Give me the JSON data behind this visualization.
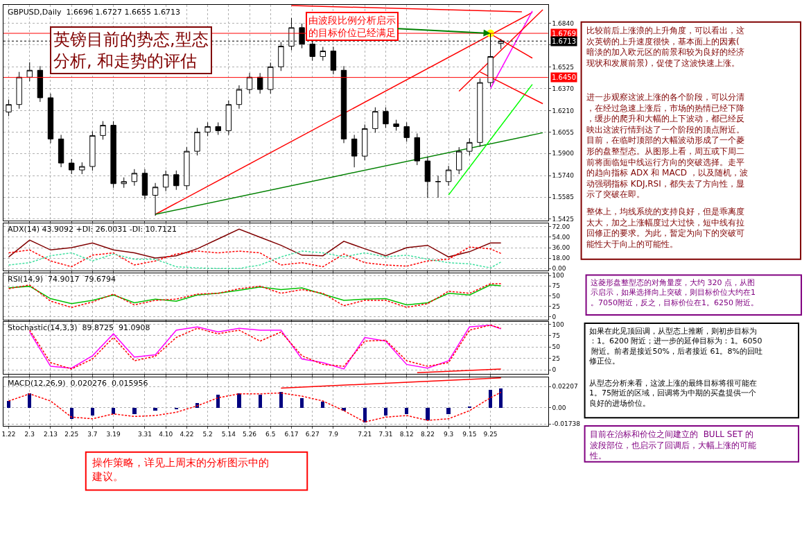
{
  "chart_data": [
    {
      "type": "candlestick",
      "title": "GBPUSD,Daily  1.6696 1.6727 1.6655 1.6713",
      "categories": [
        "1.22",
        null,
        "2.3",
        null,
        "2.13",
        null,
        "2.25",
        null,
        "3.7",
        null,
        "3.19",
        null,
        null,
        "3.31",
        null,
        "4.10",
        null,
        "4.22",
        null,
        "5.2",
        null,
        "5.14",
        null,
        "5.26",
        null,
        "6.5",
        null,
        "6.17",
        null,
        "6.27",
        null,
        "7.9",
        null,
        null,
        "7.21",
        null,
        "7.31",
        null,
        "8.12",
        null,
        "8.22",
        null,
        "9.3",
        null,
        "9.15",
        null,
        "9.25",
        null,
        null,
        null,
        null,
        null
      ],
      "ohlc": [
        [
          1.62,
          1.629,
          1.617,
          1.6254
        ],
        [
          1.6254,
          1.649,
          1.6224,
          1.6452
        ],
        [
          1.6452,
          1.656,
          1.6422,
          1.6502
        ],
        [
          1.6502,
          1.6532,
          1.6273,
          1.6303
        ],
        [
          1.6303,
          1.6333,
          1.5975,
          1.6005
        ],
        [
          1.6005,
          1.6035,
          1.5801,
          1.5831
        ],
        [
          1.5831,
          1.5861,
          1.5751,
          1.5781
        ],
        [
          1.5781,
          1.5836,
          1.5751,
          1.5806
        ],
        [
          1.5806,
          1.606,
          1.5776,
          1.603
        ],
        [
          1.603,
          1.6134,
          1.6,
          1.6104
        ],
        [
          1.6104,
          1.6134,
          1.5652,
          1.5682
        ],
        [
          1.5682,
          1.5727,
          1.5652,
          1.5697
        ],
        [
          1.5697,
          1.5787,
          1.5667,
          1.5757
        ],
        [
          1.5757,
          1.5787,
          1.5568,
          1.5598
        ],
        [
          1.5598,
          1.5687,
          1.545,
          1.5657
        ],
        [
          1.5657,
          1.5777,
          1.5627,
          1.5747
        ],
        [
          1.5747,
          1.5777,
          1.5637,
          1.5667
        ],
        [
          1.5667,
          1.5946,
          1.5637,
          1.5916
        ],
        [
          1.5916,
          1.6085,
          1.5886,
          1.6055
        ],
        [
          1.6055,
          1.6125,
          1.6025,
          1.6095
        ],
        [
          1.6095,
          1.6125,
          1.6035,
          1.6065
        ],
        [
          1.6065,
          1.6284,
          1.6035,
          1.6254
        ],
        [
          1.6254,
          1.6393,
          1.6224,
          1.6363
        ],
        [
          1.6363,
          1.6482,
          1.6333,
          1.6452
        ],
        [
          1.6452,
          1.6482,
          1.6333,
          1.6363
        ],
        [
          1.6363,
          1.6557,
          1.6333,
          1.6527
        ],
        [
          1.6527,
          1.6706,
          1.6497,
          1.6676
        ],
        [
          1.6676,
          1.688,
          1.6646,
          1.681
        ],
        [
          1.681,
          1.684,
          1.6661,
          1.6691
        ],
        [
          1.6691,
          1.6721,
          1.6571,
          1.6601
        ],
        [
          1.6601,
          1.6671,
          1.6571,
          1.6641
        ],
        [
          1.6641,
          1.6671,
          1.6472,
          1.6502
        ],
        [
          1.6502,
          1.6532,
          1.5975,
          1.6005
        ],
        [
          1.6005,
          1.6035,
          1.58,
          1.5881
        ],
        [
          1.5881,
          1.611,
          1.5851,
          1.608
        ],
        [
          1.608,
          1.6234,
          1.605,
          1.6204
        ],
        [
          1.6204,
          1.6234,
          1.6084,
          1.6114
        ],
        [
          1.6114,
          1.6144,
          1.6065,
          1.6095
        ],
        [
          1.6095,
          1.6125,
          1.5985,
          1.6015
        ],
        [
          1.6015,
          1.6045,
          1.5816,
          1.5846
        ],
        [
          1.5846,
          1.5876,
          1.558,
          1.5697
        ],
        [
          1.5697,
          1.574,
          1.558,
          1.5697
        ],
        [
          1.5697,
          1.5811,
          1.5667,
          1.5781
        ],
        [
          1.5781,
          1.5946,
          1.5751,
          1.5916
        ],
        [
          1.5916,
          1.601,
          1.5886,
          1.598
        ],
        [
          1.598,
          1.6443,
          1.595,
          1.6413
        ],
        [
          1.6413,
          1.6769,
          1.6383,
          1.6601
        ],
        [
          1.6696,
          1.6727,
          1.6655,
          1.6713
        ],
        null,
        null,
        null,
        null
      ],
      "series": [
        {
          "type": "line",
          "color": "#ff0000",
          "values": [
            null,
            null,
            null,
            null,
            null,
            null,
            null,
            null,
            null,
            null,
            null,
            null,
            null,
            null,
            1.546,
            null,
            null,
            null,
            null,
            null,
            null,
            null,
            null,
            null,
            null,
            null,
            null,
            null,
            null,
            null,
            null,
            null,
            null,
            null,
            null,
            null,
            null,
            null,
            null,
            null,
            null,
            null,
            null,
            null,
            null,
            null,
            null,
            null,
            null,
            null,
            1.692,
            null
          ]
        },
        {
          "type": "line",
          "color": "#008000",
          "values": [
            null,
            null,
            null,
            null,
            null,
            null,
            null,
            null,
            null,
            null,
            null,
            null,
            null,
            null,
            1.546,
            null,
            null,
            null,
            null,
            null,
            null,
            null,
            null,
            null,
            null,
            null,
            null,
            null,
            null,
            null,
            null,
            null,
            null,
            null,
            null,
            null,
            null,
            null,
            null,
            null,
            null,
            null,
            null,
            null,
            null,
            null,
            null,
            null,
            null,
            null,
            null,
            1.605
          ]
        },
        {
          "type": "line",
          "color": "#00ff00",
          "values": [
            null,
            null,
            null,
            null,
            null,
            null,
            null,
            null,
            null,
            null,
            null,
            null,
            null,
            null,
            null,
            null,
            null,
            null,
            null,
            null,
            null,
            null,
            null,
            null,
            null,
            null,
            null,
            null,
            null,
            null,
            null,
            null,
            null,
            null,
            null,
            null,
            null,
            null,
            null,
            null,
            null,
            null,
            1.56,
            null,
            null,
            null,
            null,
            null,
            null,
            null,
            1.64,
            null
          ]
        },
        {
          "type": "line",
          "color": "#ff00ff",
          "values": [
            null,
            null,
            null,
            null,
            null,
            null,
            null,
            null,
            null,
            null,
            null,
            null,
            null,
            null,
            null,
            null,
            null,
            null,
            null,
            null,
            null,
            null,
            null,
            null,
            null,
            null,
            null,
            null,
            null,
            null,
            null,
            null,
            null,
            null,
            null,
            null,
            null,
            null,
            null,
            null,
            null,
            null,
            null,
            null,
            null,
            null,
            1.637,
            null,
            null,
            null,
            1.693,
            null
          ]
        },
        {
          "type": "line",
          "color": "#ff0000",
          "values": [
            null,
            null,
            null,
            null,
            null,
            null,
            null,
            null,
            null,
            null,
            null,
            null,
            null,
            null,
            null,
            null,
            null,
            null,
            null,
            null,
            null,
            null,
            null,
            null,
            null,
            null,
            null,
            1.697,
            null,
            null,
            null,
            null,
            null,
            null,
            null,
            null,
            null,
            null,
            null,
            null,
            null,
            null,
            null,
            null,
            null,
            null,
            null,
            null,
            null,
            1.6925,
            null,
            null
          ]
        },
        {
          "type": "line",
          "color": "#ff0000",
          "values": [
            null,
            null,
            null,
            null,
            null,
            null,
            null,
            null,
            null,
            null,
            null,
            null,
            null,
            null,
            null,
            null,
            null,
            null,
            null,
            null,
            null,
            null,
            null,
            null,
            null,
            null,
            null,
            null,
            null,
            null,
            null,
            null,
            null,
            null,
            null,
            null,
            null,
            null,
            null,
            null,
            null,
            null,
            null,
            1.635,
            null,
            null,
            null,
            null,
            null,
            null,
            null,
            1.694
          ]
        },
        {
          "type": "line",
          "color": "#ff0000",
          "values": [
            null,
            null,
            null,
            null,
            null,
            null,
            null,
            null,
            null,
            null,
            null,
            null,
            null,
            null,
            null,
            null,
            null,
            null,
            null,
            null,
            null,
            null,
            null,
            null,
            null,
            null,
            null,
            null,
            null,
            null,
            null,
            null,
            null,
            null,
            null,
            null,
            null,
            null,
            null,
            null,
            null,
            null,
            null,
            null,
            null,
            null,
            1.6765,
            null,
            null,
            null,
            1.659,
            null
          ]
        },
        {
          "type": "line",
          "color": "#ff0000",
          "values": [
            null,
            null,
            null,
            null,
            null,
            null,
            null,
            null,
            null,
            null,
            null,
            null,
            null,
            null,
            null,
            null,
            null,
            null,
            null,
            null,
            null,
            null,
            null,
            null,
            null,
            null,
            null,
            null,
            null,
            null,
            null,
            null,
            null,
            null,
            null,
            null,
            null,
            null,
            null,
            null,
            null,
            null,
            null,
            null,
            null,
            1.649,
            null,
            null,
            null,
            null,
            null,
            1.626
          ]
        },
        {
          "type": "scatter",
          "color": "#ffff00",
          "values": [
            null,
            null,
            null,
            null,
            null,
            null,
            null,
            null,
            null,
            null,
            null,
            null,
            null,
            null,
            null,
            null,
            null,
            null,
            null,
            null,
            null,
            null,
            null,
            null,
            null,
            null,
            null,
            null,
            null,
            null,
            null,
            null,
            null,
            null,
            null,
            null,
            null,
            null,
            null,
            null,
            null,
            null,
            null,
            null,
            null,
            null,
            1.6769,
            null,
            null,
            null,
            null,
            null
          ]
        }
      ],
      "ref_lines": [
        {
          "axis": "y",
          "value": 1.6769,
          "label": "1.6769",
          "color": "#ff0000"
        },
        {
          "axis": "y",
          "value": 1.645,
          "label": "1.6450",
          "color": "#ff0000"
        },
        {
          "axis": "y",
          "value": 1.6713,
          "label": "1.6713",
          "color": "#000000",
          "line_style": "dotted"
        }
      ],
      "annotations": [
        "英镑目前的势态,型态分析, 和走势的评估",
        {
          "text": "由波段比例分析启示的目标价位已经满足",
          "x": "9.25",
          "y": 1.6769
        }
      ],
      "ylim": [
        1.5415,
        1.6975
      ],
      "yticks": [
        {
          "value": 1.5425,
          "label": "1.5425"
        },
        {
          "value": 1.5585,
          "label": "1.5585"
        },
        {
          "value": 1.574,
          "label": "1.5740"
        },
        {
          "value": 1.59,
          "label": "1.5900"
        },
        {
          "value": 1.6055,
          "label": "1.6055"
        },
        {
          "value": 1.621,
          "label": "1.6210"
        },
        {
          "value": 1.637,
          "label": "1.6370"
        },
        {
          "value": 1.6525,
          "label": "1.6525"
        },
        {
          "value": 1.6685,
          "label": null
        },
        {
          "value": 1.684,
          "label": "1.6840"
        }
      ],
      "grid": true,
      "tick_labels": "y"
    },
    {
      "type": "line",
      "title": "ADX(14) 43.9092 +DI: 26.0031 -DI: 10.7121",
      "categories": [
        "1.22",
        null,
        "2.3",
        null,
        "2.13",
        null,
        "2.25",
        null,
        "3.7",
        null,
        "3.19",
        null,
        null,
        "3.31",
        null,
        "4.10",
        null,
        "4.22",
        null,
        "5.2",
        null,
        "5.14",
        null,
        "5.26",
        null,
        "6.5",
        null,
        "6.17",
        null,
        "6.27",
        null,
        "7.9",
        null,
        null,
        "7.21",
        null,
        "7.31",
        null,
        "8.12",
        null,
        "8.22",
        null,
        "9.3",
        null,
        "9.15",
        null,
        "9.25",
        null,
        null,
        null,
        null,
        null
      ],
      "series": [
        {
          "color": "#800000",
          "line_style": "solid",
          "values": [
            20,
            null,
            49,
            null,
            32,
            null,
            36,
            null,
            44,
            null,
            32,
            null,
            27,
            null,
            18,
            null,
            22,
            null,
            34,
            null,
            51,
            null,
            68,
            null,
            54,
            null,
            40,
            null,
            23,
            null,
            22,
            null,
            47,
            null,
            34,
            null,
            22,
            null,
            36,
            null,
            40,
            null,
            20,
            null,
            29,
            null,
            44,
            44,
            null,
            null,
            null,
            null
          ]
        },
        {
          "color": "#ff0000",
          "line_style": "dashed",
          "values": [
            27,
            null,
            32,
            null,
            13,
            null,
            3,
            null,
            23,
            null,
            27,
            null,
            6,
            null,
            13,
            null,
            25,
            null,
            30,
            null,
            27,
            null,
            30,
            null,
            27,
            null,
            6,
            null,
            10,
            null,
            3,
            null,
            25,
            null,
            10,
            null,
            6,
            null,
            4,
            null,
            13,
            null,
            16,
            null,
            37,
            null,
            34,
            26,
            null,
            null,
            null,
            null
          ]
        },
        {
          "color": "#40e0a0",
          "line_style": "dashed",
          "values": [
            6,
            null,
            10,
            null,
            22,
            null,
            27,
            null,
            13,
            null,
            25,
            null,
            16,
            null,
            16,
            null,
            3,
            null,
            1,
            null,
            0,
            null,
            0,
            null,
            6,
            null,
            20,
            null,
            30,
            null,
            27,
            null,
            20,
            null,
            27,
            null,
            20,
            null,
            23,
            null,
            16,
            null,
            10,
            null,
            8,
            null,
            1,
            11,
            null,
            null,
            null,
            null
          ]
        }
      ],
      "ylim": [
        -3,
        78
      ],
      "yticks": [
        {
          "value": 0,
          "label": "0.00"
        },
        {
          "value": 18,
          "label": "18.00"
        },
        {
          "value": 36,
          "label": "36.00"
        },
        {
          "value": 54,
          "label": "54.00"
        },
        {
          "value": 72,
          "label": "72.00"
        }
      ],
      "grid": true,
      "tick_labels": "y"
    },
    {
      "type": "line",
      "title": "RSI(14,9)  74.9017  79.6794",
      "categories": [
        "1.22",
        null,
        "2.3",
        null,
        "2.13",
        null,
        "2.25",
        null,
        "3.7",
        null,
        "3.19",
        null,
        null,
        "3.31",
        null,
        "4.10",
        null,
        "4.22",
        null,
        "5.2",
        null,
        "5.14",
        null,
        "5.26",
        null,
        "6.5",
        null,
        "6.17",
        null,
        "6.27",
        null,
        "7.9",
        null,
        null,
        "7.21",
        null,
        "7.31",
        null,
        "8.12",
        null,
        "8.22",
        null,
        "9.3",
        null,
        "9.15",
        null,
        "9.25",
        null,
        null,
        null,
        null,
        null
      ],
      "series": [
        {
          "color": "#00c000",
          "line_style": "solid",
          "values": [
            70,
            null,
            74,
            null,
            44,
            null,
            32,
            null,
            40,
            null,
            53,
            null,
            34,
            null,
            43,
            null,
            38,
            null,
            53,
            null,
            57,
            null,
            64,
            null,
            72,
            null,
            66,
            null,
            70,
            null,
            55,
            null,
            40,
            null,
            43,
            null,
            44,
            null,
            29,
            null,
            34,
            null,
            57,
            null,
            53,
            null,
            77,
            75,
            null,
            null,
            null,
            null
          ]
        },
        {
          "color": "#ff0000",
          "line_style": "dashed",
          "values": [
            68,
            null,
            77,
            null,
            38,
            null,
            23,
            null,
            36,
            null,
            55,
            null,
            29,
            null,
            40,
            null,
            43,
            null,
            55,
            null,
            57,
            null,
            68,
            null,
            74,
            null,
            57,
            null,
            66,
            null,
            57,
            null,
            27,
            null,
            40,
            null,
            40,
            null,
            23,
            null,
            32,
            null,
            62,
            null,
            57,
            null,
            80,
            80,
            null,
            null,
            null,
            null
          ]
        }
      ],
      "ylim": [
        -7,
        106
      ],
      "yticks": [
        0,
        25,
        50,
        75,
        100
      ],
      "grid": true,
      "tick_labels": "y"
    },
    {
      "type": "line",
      "title": "Stochastic(14,3,3)  89.8725  91.0908",
      "categories": [
        "1.22",
        null,
        "2.3",
        null,
        "2.13",
        null,
        "2.25",
        null,
        "3.7",
        null,
        "3.19",
        null,
        null,
        "3.31",
        null,
        "4.10",
        null,
        "4.22",
        null,
        "5.2",
        null,
        "5.14",
        null,
        "5.26",
        null,
        "6.5",
        null,
        "6.17",
        null,
        "6.27",
        null,
        "7.9",
        null,
        null,
        "7.21",
        null,
        "7.31",
        null,
        "8.12",
        null,
        "8.22",
        null,
        "9.3",
        null,
        "9.15",
        null,
        "9.25",
        null,
        null,
        null,
        null,
        null
      ],
      "series": [
        {
          "color": "#ff00ff",
          "line_style": "solid",
          "values": [
            null,
            null,
            83,
            null,
            8,
            null,
            4,
            null,
            31,
            null,
            79,
            null,
            28,
            null,
            33,
            null,
            87,
            null,
            94,
            null,
            83,
            null,
            91,
            null,
            87,
            null,
            87,
            null,
            24,
            null,
            16,
            null,
            2,
            null,
            71,
            null,
            63,
            null,
            12,
            null,
            4,
            null,
            20,
            null,
            94,
            null,
            98,
            90,
            null,
            null,
            null,
            null
          ]
        },
        {
          "color": "#ff0000",
          "line_style": "dashed",
          "values": [
            null,
            null,
            87,
            null,
            16,
            null,
            2,
            null,
            24,
            null,
            71,
            null,
            20,
            null,
            30,
            null,
            71,
            null,
            91,
            null,
            79,
            null,
            87,
            null,
            63,
            null,
            83,
            null,
            31,
            null,
            12,
            null,
            8,
            null,
            63,
            null,
            65,
            null,
            20,
            null,
            8,
            null,
            16,
            null,
            87,
            null,
            98,
            91,
            null,
            null,
            null,
            null
          ]
        },
        {
          "color": "#ff0000",
          "line_style": "solid",
          "values": [
            null,
            null,
            null,
            null,
            null,
            null,
            null,
            null,
            null,
            null,
            null,
            null,
            null,
            null,
            null,
            null,
            null,
            null,
            null,
            null,
            null,
            null,
            null,
            null,
            null,
            null,
            null,
            null,
            null,
            null,
            null,
            null,
            null,
            null,
            null,
            null,
            null,
            null,
            null,
            -6,
            null,
            null,
            null,
            null,
            null,
            null,
            null,
            2,
            null,
            null,
            null,
            null
          ]
        }
      ],
      "ylim": [
        -8,
        105
      ],
      "yticks": [
        0,
        25,
        50,
        75,
        100
      ],
      "grid": true,
      "tick_labels": "y"
    },
    {
      "type": "line",
      "title": "MACD(12,26,9)  0.020276  0.015956",
      "categories": [
        "1.22",
        null,
        "2.3",
        null,
        "2.13",
        null,
        "2.25",
        null,
        "3.7",
        null,
        "3.19",
        null,
        null,
        "3.31",
        null,
        "4.10",
        null,
        "4.22",
        null,
        "5.2",
        null,
        "5.14",
        null,
        "5.26",
        null,
        "6.5",
        null,
        "6.17",
        null,
        "6.27",
        null,
        "7.9",
        null,
        null,
        "7.21",
        null,
        "7.31",
        null,
        "8.12",
        null,
        "8.22",
        null,
        "9.3",
        null,
        "9.15",
        null,
        "9.25",
        null,
        null,
        null,
        null,
        null
      ],
      "series": [
        {
          "type": "bar",
          "color": "#000080",
          "values": [
            0.0075,
            null,
            0.0153,
            null,
            0,
            null,
            -0.0119,
            null,
            -0.0085,
            null,
            -0.0068,
            null,
            -0.0068,
            null,
            -0.0034,
            null,
            -0.0017,
            null,
            0.0051,
            null,
            0.0136,
            null,
            0.0153,
            null,
            0.0136,
            null,
            0.017,
            null,
            0.0102,
            null,
            0.0068,
            null,
            -0.0034,
            null,
            -0.0153,
            null,
            -0.0085,
            null,
            -0.0068,
            null,
            -0.0136,
            null,
            -0.0068,
            null,
            0.0017,
            null,
            0.0187,
            0.0203,
            null,
            null,
            null,
            null
          ]
        },
        {
          "type": "line",
          "color": "#ff0000",
          "line_style": "dashed",
          "values": [
            0.0068,
            null,
            0.0143,
            null,
            0.0068,
            null,
            -0.0102,
            null,
            -0.0119,
            null,
            -0.0068,
            null,
            -0.0095,
            null,
            -0.0085,
            null,
            -0.0051,
            null,
            0.0017,
            null,
            0.0102,
            null,
            0.0143,
            null,
            0.0143,
            null,
            0.0153,
            null,
            0.0119,
            null,
            0.0068,
            null,
            -0.0034,
            null,
            -0.0153,
            null,
            -0.0102,
            null,
            -0.0085,
            null,
            -0.0136,
            null,
            -0.0119,
            null,
            -0.0034,
            null,
            0.0102,
            0.016,
            null,
            null,
            null,
            null
          ]
        },
        {
          "type": "line",
          "color": "#ff0000",
          "line_style": "solid",
          "values": [
            null,
            null,
            null,
            null,
            null,
            null,
            null,
            null,
            null,
            null,
            null,
            null,
            null,
            null,
            null,
            null,
            null,
            null,
            null,
            null,
            null,
            null,
            null,
            null,
            null,
            null,
            0.0204,
            null,
            null,
            null,
            null,
            null,
            null,
            null,
            null,
            null,
            null,
            null,
            null,
            null,
            null,
            null,
            null,
            null,
            null,
            null,
            null,
            0.0312,
            null,
            null,
            null,
            null
          ]
        }
      ],
      "ylim": [
        -0.0195,
        0.032
      ],
      "yticks": [
        {
          "value": -0.01738,
          "label": "-0.01738"
        },
        {
          "value": 0,
          "label": "0.00"
        },
        {
          "value": 0.02207,
          "label": "0.02207"
        }
      ],
      "grid": true
    },
    {
      "type": "other",
      "colors": [
        "#800000",
        "#800000",
        "#800000",
        "#800080",
        "#000000",
        "#000000",
        "#800080",
        "#ff0000"
      ],
      "annotations": [
        "比较前后上涨浪的上升角度，可以看出，这次英镑的上升速度很快，基本面上的因素(暗淡的加入欧元区的前景和较为良好的经济现状和发展前景)，促使了这波快速上涨。",
        "进一步观察这波上涨的各个阶段，可以分清，在经过急速上涨后，市场的热情已经下降，缓步的爬升和大幅的上下波动，都已经反映出这波行情到达了一个阶段的顶点附近。目前，在临时顶部的大幅波动形成了一个菱形的盘整型态。从图形上看，周五或下周二前将面临短中线运行方向的突破选择。走平的趋向指标 ADX 和 MACD ，以及随机，波动强弱指标 KDJ,RSI，都失去了方向性，显示了突破在即。",
        "整体上，均线系统的支持良好，但是乖离度太大，加之上涨幅度过大过快，短中线有拉回修正的要求。为此，暂定为向下的突破可能性大于向上的可能性。",
        "这菱形盘整型态的对角量度，大约 320 点，从图示启示，如果选择向上突破，则目标价位大约在1。7050附近，反之，目标价位在1。6250 附近。",
        "如果在此见顶回调，从型态上推断，则初步目标为：1。6200 附近；进一步的延伸目标为：1。6050 附近。前者是接近50%，后者接近 61。8%的回吐修正位。",
        "从型态分析来看，这波上涨的最终目标将很可能在1。75附近的区域，回调将为中期的买盘提供一个良好的进场价位。",
        "目前在治标和价位之间建立的  BULL SET 的波段部位，也启示了回调后，大幅上涨的可能性。",
        "操作策略，详见上周末的分析图示中的建议。"
      ]
    }
  ]
}
